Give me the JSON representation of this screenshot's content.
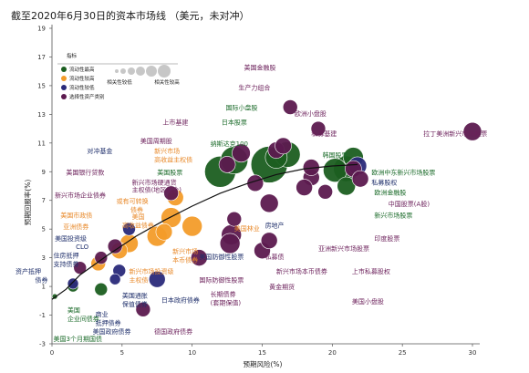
{
  "chart_data": {
    "type": "scatter",
    "title": "截至2020年6月30日的资本市场线 （美元，未对冲）",
    "xlabel": "预期风险(%)",
    "ylabel": "预期回报率(%)",
    "xlim": [
      0,
      30
    ],
    "ylim": [
      -3,
      19
    ],
    "xticks": [
      0,
      5,
      10,
      15,
      20,
      25,
      30
    ],
    "yticks": [
      -3,
      -1,
      1,
      3,
      5,
      7,
      9,
      11,
      13,
      15,
      17,
      19
    ],
    "grid": false,
    "legend": {
      "title": "指标",
      "placement": "top-left",
      "categories": [
        {
          "label": "流动性最高",
          "color": "#1b5e20"
        },
        {
          "label": "流动性较高",
          "color": "#f39c2a"
        },
        {
          "label": "流动性较低",
          "color": "#2a2a7a"
        },
        {
          "label": "选择性资产类别",
          "color": "#5c1a4f"
        }
      ],
      "size_labels": [
        "相关性较低",
        "相关性较高"
      ]
    },
    "colors": {
      "highest": "#1b5e20",
      "high": "#f39c2a",
      "low": "#2a2a7a",
      "alternative": "#5c1a4f",
      "label_highest": "#1b6b2a",
      "label_high": "#e8892a",
      "label_low": "#1f2f6b",
      "label_alt": "#6b1f5a",
      "label_dark": "#333333",
      "curve": "#111111"
    },
    "points": [
      {
        "label": "美国3个月期国债",
        "x": 0.2,
        "y": 0.3,
        "cat": "highest",
        "r": 3
      },
      {
        "label": "美国企业间债券",
        "x": 1.5,
        "y": 1.0,
        "cat": "highest",
        "r": 6
      },
      {
        "label": "美国政府债券",
        "x": 3.5,
        "y": 0.8,
        "cat": "highest",
        "r": 7
      },
      {
        "label": "资产抵押债券",
        "x": 1.5,
        "y": 1.2,
        "cat": "low",
        "r": 6
      },
      {
        "label": "商业抵押债券",
        "x": 4.5,
        "y": 1.5,
        "cat": "low",
        "r": 6
      },
      {
        "label": "美国通胀保值债券",
        "x": 4.8,
        "y": 2.1,
        "cat": "low",
        "r": 7
      },
      {
        "label": "住房抵押支持债券",
        "x": 2.0,
        "y": 2.3,
        "cat": "alternative",
        "r": 7
      },
      {
        "label": "美国投资级CLO",
        "x": 3.5,
        "y": 3.0,
        "cat": "alternative",
        "r": 7
      },
      {
        "label": "美国投资级债券",
        "x": 4.5,
        "y": 3.8,
        "cat": "alternative",
        "r": 8
      },
      {
        "label": "美国市政债",
        "x": 3.3,
        "y": 2.6,
        "cat": "high",
        "r": 8
      },
      {
        "label": "亚洲债券",
        "x": 4.8,
        "y": 3.5,
        "cat": "high",
        "r": 9
      },
      {
        "label": "新兴市场企业债券",
        "x": 5.5,
        "y": 4.0,
        "cat": "high",
        "r": 10
      },
      {
        "label": "美国高收益债券",
        "x": 7.5,
        "y": 4.5,
        "cat": "high",
        "r": 11
      },
      {
        "label": "或有可转换债券",
        "x": 8.5,
        "y": 5.8,
        "cat": "high",
        "r": 11
      },
      {
        "label": "美国银行贷款",
        "x": 5.5,
        "y": 5.0,
        "cat": "low",
        "r": 7
      },
      {
        "label": "新兴市场本币债券",
        "x": 10.0,
        "y": 5.2,
        "cat": "high",
        "r": 11
      },
      {
        "label": "新兴市场主权债",
        "x": 8.0,
        "y": 4.8,
        "cat": "high",
        "r": 9
      },
      {
        "label": "新兴市场硬通货主权债",
        "x": 8.8,
        "y": 7.2,
        "cat": "high",
        "r": 9
      },
      {
        "label": "对冲基金",
        "x": 8.5,
        "y": 7.5,
        "cat": "alternative",
        "r": 8
      },
      {
        "label": "美国林业",
        "x": 13.0,
        "y": 5.7,
        "cat": "alternative",
        "r": 8
      },
      {
        "label": "德国政府债券",
        "x": 6.5,
        "y": -0.6,
        "cat": "alternative",
        "r": 8
      },
      {
        "label": "日本政府债券",
        "x": 7.5,
        "y": 1.5,
        "cat": "low",
        "r": 9
      },
      {
        "label": "长期债券(套期保值)",
        "x": 10.5,
        "y": 3.0,
        "cat": "alternative",
        "r": 9
      },
      {
        "label": "美国防御性股票",
        "x": 12.8,
        "y": 4.6,
        "cat": "alternative",
        "r": 11
      },
      {
        "label": "国际防御性股票",
        "x": 12.7,
        "y": 4.0,
        "cat": "alternative",
        "r": 11
      },
      {
        "label": "黄金期货",
        "x": 15.0,
        "y": 3.5,
        "cat": "alternative",
        "r": 9
      },
      {
        "label": "私募债",
        "x": 15.5,
        "y": 4.2,
        "cat": "alternative",
        "r": 9
      },
      {
        "label": "美国股票",
        "x": 12.0,
        "y": 9.0,
        "cat": "highest",
        "r": 17
      },
      {
        "label": "纳斯达克100",
        "x": 13.0,
        "y": 9.8,
        "cat": "highest",
        "r": 15
      },
      {
        "label": "新兴市场",
        "x": 15.5,
        "y": 9.5,
        "cat": "highest",
        "r": 20
      },
      {
        "label": "日本股票",
        "x": 16.0,
        "y": 10.0,
        "cat": "highest",
        "r": 12
      },
      {
        "label": "国际小盘股",
        "x": 16.8,
        "y": 10.2,
        "cat": "highest",
        "r": 14
      },
      {
        "label": "美国金融股",
        "x": 16.0,
        "y": 10.5,
        "cat": "alternative",
        "r": 9
      },
      {
        "label": "上市基建",
        "x": 12.5,
        "y": 9.5,
        "cat": "alternative",
        "r": 9
      },
      {
        "label": "美国周期股",
        "x": 13.5,
        "y": 10.3,
        "cat": "alternative",
        "r": 10
      },
      {
        "label": "生产力组合",
        "x": 16.5,
        "y": 10.8,
        "cat": "alternative",
        "r": 9
      },
      {
        "label": "欧洲小盘股",
        "x": 17.0,
        "y": 13.5,
        "cat": "alternative",
        "r": 8
      },
      {
        "label": "私募基建",
        "x": 19.0,
        "y": 12.0,
        "cat": "alternative",
        "r": 8
      },
      {
        "label": "韩国股票",
        "x": 20.2,
        "y": 9.1,
        "cat": "highest",
        "r": 13
      },
      {
        "label": "欧洲股票",
        "x": 21.0,
        "y": 9.2,
        "cat": "highest",
        "r": 14
      },
      {
        "label": "欧洲金融股",
        "x": 21.5,
        "y": 9.2,
        "cat": "alternative",
        "r": 9
      },
      {
        "label": "私募股权",
        "x": 21.8,
        "y": 9.4,
        "cat": "low",
        "r": 10
      },
      {
        "label": "欧洲中东新兴市场股票",
        "x": 21.5,
        "y": 10.0,
        "cat": "highest",
        "r": 11
      },
      {
        "label": "中国股票(A股)",
        "x": 22.0,
        "y": 8.5,
        "cat": "alternative",
        "r": 9
      },
      {
        "label": "拉丁美洲新兴市场股票",
        "x": 30.0,
        "y": 11.8,
        "cat": "alternative",
        "r": 10
      },
      {
        "label": "新兴市场股票",
        "x": 21.0,
        "y": 8.0,
        "cat": "highest",
        "r": 10
      },
      {
        "label": "印度股票",
        "x": 19.5,
        "y": 7.6,
        "cat": "alternative",
        "r": 8
      },
      {
        "label": "亚洲新兴市场股票",
        "x": 18.5,
        "y": 8.6,
        "cat": "alternative",
        "r": 9
      },
      {
        "label": "上市私募股权",
        "x": 18.0,
        "y": 7.9,
        "cat": "alternative",
        "r": 9
      },
      {
        "label": "美国小盘股",
        "x": 18.5,
        "y": 9.3,
        "cat": "alternative",
        "r": 9
      },
      {
        "label": "房地产",
        "x": 15.5,
        "y": 6.8,
        "cat": "alternative",
        "r": 10
      },
      {
        "label": "新兴市场本币债券",
        "x": 14.5,
        "y": 8.2,
        "cat": "alternative",
        "r": 9
      }
    ],
    "curve": [
      [
        0,
        0.1
      ],
      [
        1,
        0.8
      ],
      [
        2,
        1.8
      ],
      [
        4,
        3.2
      ],
      [
        6,
        4.5
      ],
      [
        8,
        5.6
      ],
      [
        10,
        6.6
      ],
      [
        12,
        7.5
      ],
      [
        14,
        8.2
      ],
      [
        16,
        8.8
      ],
      [
        18,
        9.2
      ],
      [
        20,
        9.4
      ],
      [
        21.8,
        9.5
      ]
    ]
  },
  "labels": [
    {
      "text": "美国金融股",
      "x": 13.7,
      "y": 16.1,
      "c": "label_alt",
      "a": "start"
    },
    {
      "text": "生产力组合",
      "x": 13.3,
      "y": 14.7,
      "c": "label_alt",
      "a": "start"
    },
    {
      "text": "国际小盘股",
      "x": 12.4,
      "y": 13.3,
      "c": "label_highest",
      "a": "start"
    },
    {
      "text": "欧洲小盘股",
      "x": 17.3,
      "y": 12.9,
      "c": "label_alt",
      "a": "start"
    },
    {
      "text": "上市基建",
      "x": 7.9,
      "y": 12.3,
      "c": "label_alt",
      "a": "start"
    },
    {
      "text": "日本股票",
      "x": 12.1,
      "y": 12.3,
      "c": "label_highest",
      "a": "start"
    },
    {
      "text": "私募基建",
      "x": 18.5,
      "y": 11.5,
      "c": "label_alt",
      "a": "start"
    },
    {
      "text": "拉丁美洲新兴市场股票",
      "x": 26.5,
      "y": 11.5,
      "c": "label_alt",
      "a": "start"
    },
    {
      "text": "美国周期股",
      "x": 6.3,
      "y": 11.0,
      "c": "label_alt",
      "a": "start"
    },
    {
      "text": "纳斯达克100",
      "x": 11.3,
      "y": 10.8,
      "c": "label_highest",
      "a": "start"
    },
    {
      "text": "对冲基金",
      "x": 2.5,
      "y": 10.3,
      "c": "label_low",
      "a": "start"
    },
    {
      "text": "新兴市场",
      "x": 7.3,
      "y": 10.3,
      "c": "label_high",
      "a": "start"
    },
    {
      "text": "高收益主权债",
      "x": 7.3,
      "y": 9.7,
      "c": "label_high",
      "a": "start"
    },
    {
      "text": "韩国股票",
      "x": 19.3,
      "y": 10.0,
      "c": "label_highest",
      "a": "start"
    },
    {
      "text": "美国银行贷款",
      "x": 1.0,
      "y": 8.8,
      "c": "label_alt",
      "a": "start"
    },
    {
      "text": "美国股票",
      "x": 7.5,
      "y": 8.8,
      "c": "label_highest",
      "a": "start"
    },
    {
      "text": "欧洲中东新兴市场股票",
      "x": 22.8,
      "y": 8.8,
      "c": "label_highest",
      "a": "start"
    },
    {
      "text": "新兴市场硬通货",
      "x": 5.7,
      "y": 8.1,
      "c": "label_alt",
      "a": "start"
    },
    {
      "text": "主权债(地区组合)",
      "x": 5.7,
      "y": 7.6,
      "c": "label_alt",
      "a": "start"
    },
    {
      "text": "私募股权",
      "x": 22.8,
      "y": 8.1,
      "c": "label_low",
      "a": "start"
    },
    {
      "text": "新兴市场企业债券",
      "x": 0.2,
      "y": 7.2,
      "c": "label_alt",
      "a": "start"
    },
    {
      "text": "欧洲金融股",
      "x": 23.0,
      "y": 7.4,
      "c": "label_highest",
      "a": "start"
    },
    {
      "text": "或有可转换",
      "x": 4.6,
      "y": 6.8,
      "c": "label_high",
      "a": "start"
    },
    {
      "text": "债券",
      "x": 5.6,
      "y": 6.2,
      "c": "label_high",
      "a": "start"
    },
    {
      "text": "中国股票(A股)",
      "x": 24.0,
      "y": 6.6,
      "c": "label_alt",
      "a": "start"
    },
    {
      "text": "美国市政债",
      "x": 0.6,
      "y": 5.8,
      "c": "label_high",
      "a": "start"
    },
    {
      "text": "美国",
      "x": 5.7,
      "y": 5.7,
      "c": "label_high",
      "a": "start"
    },
    {
      "text": "高收益债券",
      "x": 5.0,
      "y": 5.1,
      "c": "label_high",
      "a": "start"
    },
    {
      "text": "房地产",
      "x": 15.2,
      "y": 5.1,
      "c": "label_low",
      "a": "start"
    },
    {
      "text": "新兴市场股票",
      "x": 23.0,
      "y": 5.8,
      "c": "label_highest",
      "a": "start"
    },
    {
      "text": "亚洲债券",
      "x": 0.8,
      "y": 5.0,
      "c": "label_high",
      "a": "start"
    },
    {
      "text": "美国林业",
      "x": 13.0,
      "y": 4.9,
      "c": "label_high",
      "a": "start"
    },
    {
      "text": "美国投资级",
      "x": 0.2,
      "y": 4.2,
      "c": "label_low",
      "a": "start"
    },
    {
      "text": "CLO",
      "x": 1.7,
      "y": 3.6,
      "c": "label_low",
      "a": "start"
    },
    {
      "text": "印度股票",
      "x": 23.0,
      "y": 4.2,
      "c": "label_alt",
      "a": "start"
    },
    {
      "text": "新兴市场",
      "x": 8.6,
      "y": 3.3,
      "c": "label_high",
      "a": "start"
    },
    {
      "text": "本币债券",
      "x": 8.6,
      "y": 2.7,
      "c": "label_high",
      "a": "start"
    },
    {
      "text": "亚洲新兴市场股票",
      "x": 19.0,
      "y": 3.5,
      "c": "label_alt",
      "a": "start"
    },
    {
      "text": "住房抵押",
      "x": 0.1,
      "y": 3.0,
      "c": "label_low",
      "a": "start"
    },
    {
      "text": "支持债券",
      "x": 0.1,
      "y": 2.4,
      "c": "label_low",
      "a": "start"
    },
    {
      "text": "美国防御性股票",
      "x": 10.5,
      "y": 2.9,
      "c": "label_low",
      "a": "start"
    },
    {
      "text": "私募债",
      "x": 15.2,
      "y": 2.9,
      "c": "label_alt",
      "a": "start"
    },
    {
      "text": "资产抵押",
      "x": -2.6,
      "y": 1.9,
      "c": "label_low",
      "a": "start"
    },
    {
      "text": "债券",
      "x": -1.2,
      "y": 1.3,
      "c": "label_low",
      "a": "start"
    },
    {
      "text": "新兴市场投资级",
      "x": 5.5,
      "y": 1.9,
      "c": "label_high",
      "a": "start"
    },
    {
      "text": "主权债",
      "x": 5.5,
      "y": 1.3,
      "c": "label_high",
      "a": "start"
    },
    {
      "text": "国际防御性股票",
      "x": 10.5,
      "y": 1.3,
      "c": "label_alt",
      "a": "start"
    },
    {
      "text": "新兴市场本币债券",
      "x": 16.0,
      "y": 1.9,
      "c": "label_alt",
      "a": "start"
    },
    {
      "text": "上市私募股权",
      "x": 21.4,
      "y": 1.9,
      "c": "label_alt",
      "a": "start"
    },
    {
      "text": "长期债券",
      "x": 11.3,
      "y": 0.3,
      "c": "label_alt",
      "a": "start"
    },
    {
      "text": "(套期保值)",
      "x": 11.3,
      "y": -0.3,
      "c": "label_alt",
      "a": "start"
    },
    {
      "text": "黄金期货",
      "x": 15.5,
      "y": 0.8,
      "c": "label_alt",
      "a": "start"
    },
    {
      "text": "美国通胀",
      "x": 5.0,
      "y": 0.2,
      "c": "label_low",
      "a": "start"
    },
    {
      "text": "保值债券",
      "x": 5.0,
      "y": -0.4,
      "c": "label_low",
      "a": "start"
    },
    {
      "text": "日本政府债券",
      "x": 7.8,
      "y": -0.1,
      "c": "label_low",
      "a": "start"
    },
    {
      "text": "美国小盘股",
      "x": 21.4,
      "y": -0.2,
      "c": "label_alt",
      "a": "start"
    },
    {
      "text": "美国",
      "x": 1.1,
      "y": -0.8,
      "c": "label_highest",
      "a": "start"
    },
    {
      "text": "企业间债券",
      "x": 1.1,
      "y": -1.4,
      "c": "label_highest",
      "a": "start"
    },
    {
      "text": "商业",
      "x": 3.1,
      "y": -1.1,
      "c": "label_low",
      "a": "start"
    },
    {
      "text": "抵押债券",
      "x": 3.1,
      "y": -1.7,
      "c": "label_low",
      "a": "start"
    },
    {
      "text": "美国政府债券",
      "x": 2.9,
      "y": -2.3,
      "c": "label_low",
      "a": "start"
    },
    {
      "text": "德国政府债券",
      "x": 7.3,
      "y": -2.3,
      "c": "label_alt",
      "a": "start"
    },
    {
      "text": "美国3个月期国债",
      "x": 0.1,
      "y": -2.8,
      "c": "label_highest",
      "a": "start"
    }
  ]
}
